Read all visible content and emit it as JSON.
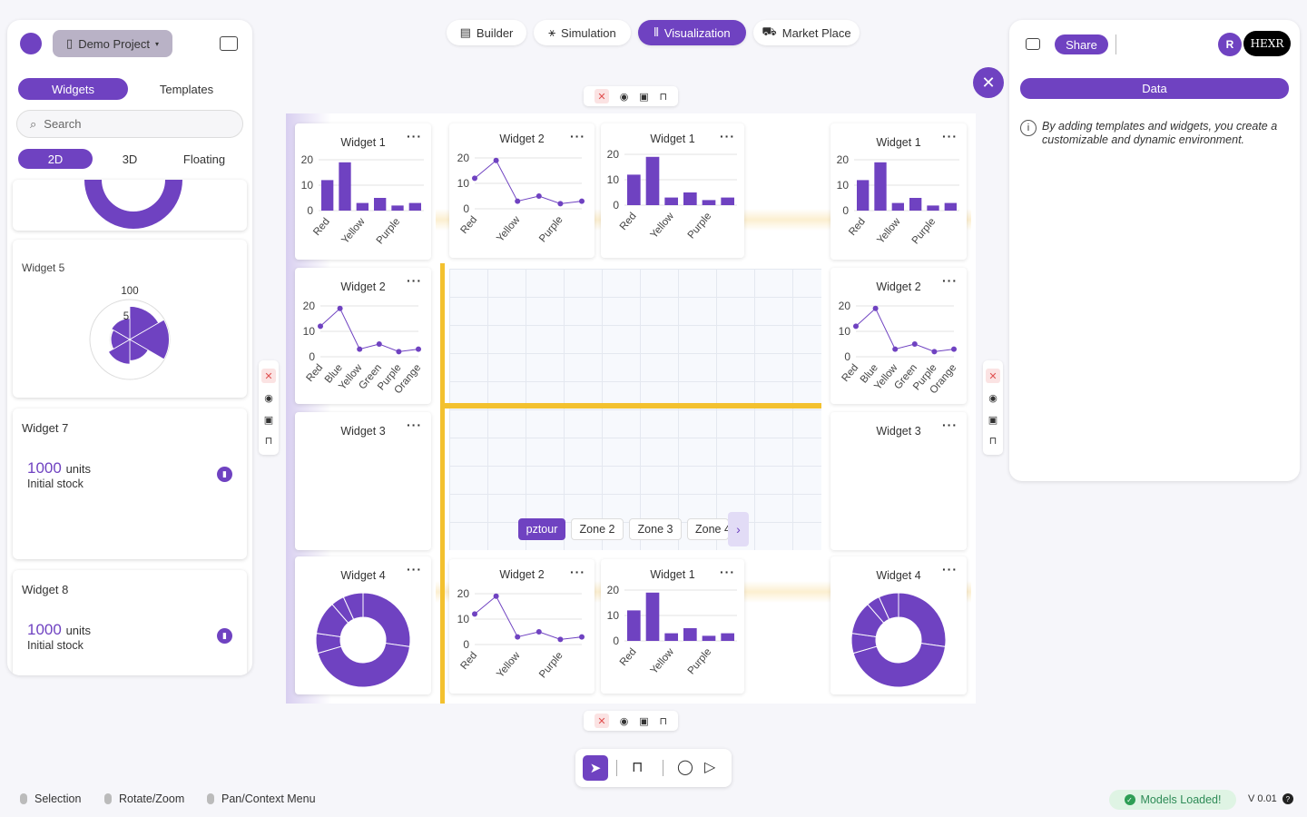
{
  "project": {
    "name": "Demo Project"
  },
  "left_panel": {
    "tabs": [
      "Widgets",
      "Templates"
    ],
    "search_placeholder": "Search",
    "view_tabs": [
      "2D",
      "3D",
      "Floating"
    ],
    "cards": [
      {
        "title": "Widget 5",
        "polar_max": "100",
        "polar_mid": "5"
      },
      {
        "title": "Widget 7",
        "value": "1000",
        "unit": "units",
        "sub": "Initial stock"
      },
      {
        "title": "Widget 8",
        "value": "1000",
        "unit": "units",
        "sub": "Initial stock"
      }
    ]
  },
  "nav": [
    "Builder",
    "Simulation",
    "Visualization",
    "Market Place"
  ],
  "right_panel": {
    "share": "Share",
    "avatar": "R",
    "brand": "HEXR",
    "data_tab": "Data",
    "info": "By adding templates and widgets, you create a customizable and dynamic environment."
  },
  "widgets": {
    "w1": "Widget 1",
    "w2": "Widget 2",
    "w3": "Widget 3",
    "w4": "Widget 4"
  },
  "zones": [
    "pztour",
    "Zone 2",
    "Zone 3",
    "Zone 4"
  ],
  "status": {
    "hints": [
      "Selection",
      "Rotate/Zoom",
      "Pan/Context Menu"
    ],
    "models": "Models Loaded!",
    "version": "V 0.01"
  },
  "chart_data": [
    {
      "type": "bar",
      "title": "Widget 1",
      "categories": [
        "Red",
        "Blue",
        "Yellow",
        "Green",
        "Purple",
        "Orange"
      ],
      "values": [
        12,
        19,
        3,
        5,
        2,
        3
      ],
      "ylim": [
        0,
        20
      ],
      "ticks": [
        0,
        10,
        20
      ],
      "xlabels_shown": [
        "Red",
        "Yellow",
        "Purple"
      ]
    },
    {
      "type": "line",
      "title": "Widget 2",
      "categories": [
        "Red",
        "Blue",
        "Yellow",
        "Green",
        "Purple",
        "Orange"
      ],
      "values": [
        12,
        19,
        3,
        5,
        2,
        3
      ],
      "ylim": [
        0,
        20
      ],
      "ticks": [
        0,
        10,
        20
      ]
    },
    {
      "type": "pie",
      "title": "Widget 4",
      "style": "doughnut",
      "values": [
        12,
        19,
        3,
        5,
        2,
        3
      ]
    },
    {
      "type": "polar",
      "title": "Widget 5",
      "values": [
        12,
        19,
        3,
        5,
        2,
        3
      ]
    }
  ]
}
